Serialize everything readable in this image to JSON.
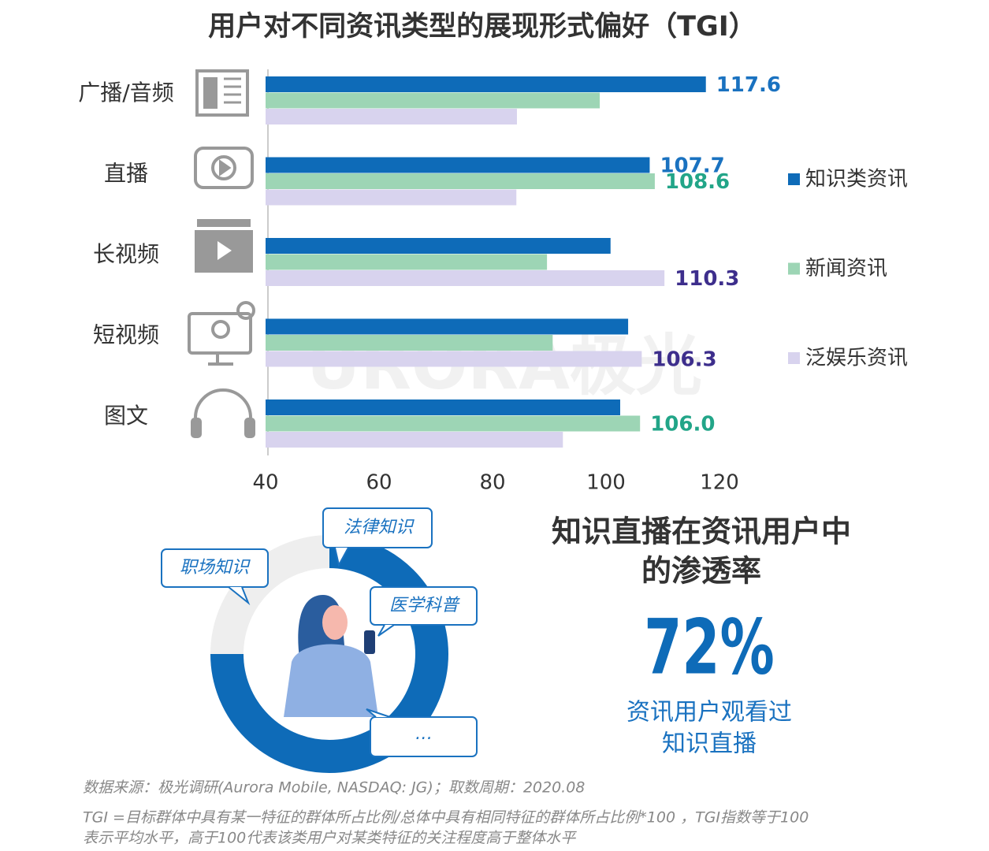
{
  "chart_data": {
    "type": "bar",
    "orientation": "horizontal",
    "title": "用户对不同资讯类型的展现形式偏好（TGI）",
    "categories": [
      "广播/音频",
      "直播",
      "长视频",
      "短视频",
      "图文"
    ],
    "series": [
      {
        "name": "知识类资讯",
        "color": "#0e6bb8",
        "label_color": "#1a72c0",
        "values": [
          117.6,
          107.7,
          100.8,
          103.9,
          102.5
        ],
        "value_labels": [
          "117.6",
          "107.7",
          null,
          null,
          null
        ]
      },
      {
        "name": "新闻资讯",
        "color": "#9dd5b5",
        "label_color": "#22a588",
        "values": [
          98.9,
          108.6,
          89.6,
          90.6,
          106.0
        ],
        "value_labels": [
          null,
          "108.6",
          null,
          null,
          "106.0"
        ]
      },
      {
        "name": "泛娱乐资讯",
        "color": "#d8d3ee",
        "label_color": "#3d2e8c",
        "values": [
          84.3,
          84.2,
          110.3,
          106.3,
          92.4
        ],
        "value_labels": [
          null,
          null,
          "110.3",
          "106.3",
          null
        ]
      }
    ],
    "xlim": [
      40,
      120
    ],
    "xticks": [
      40,
      60,
      80,
      100,
      120
    ],
    "legend": "right"
  },
  "infographic": {
    "tags": [
      "法律知识",
      "职场知识",
      "医学科普",
      "…"
    ],
    "headline": [
      "知识直播在资讯用户中",
      "的渗透率"
    ],
    "stat": "72%",
    "caption": [
      "资讯用户观看过",
      "知识直播"
    ]
  },
  "watermark": "URORA极光",
  "footer": {
    "source": "数据来源：极光调研(Aurora Mobile, NASDAQ: JG)；取数周期：2020.08",
    "notes": [
      "TGI =目标群体中具有某一特征的群体所占比例/总体中具有相同特征的群体所占比例*100 ，TGI指数等于100",
      "表示平均水平，高于100代表该类用户对某类特征的关注程度高于整体水平"
    ]
  }
}
